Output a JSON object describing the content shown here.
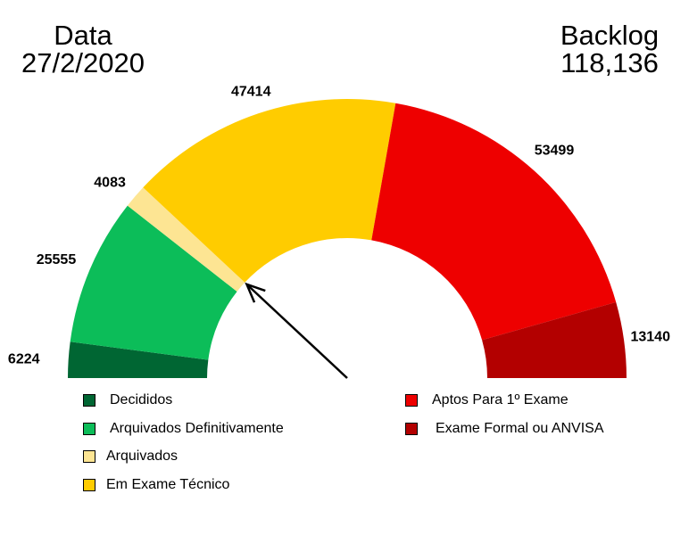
{
  "header": {
    "date_label": "Data",
    "date_value": "27/2/2020",
    "backlog_label": "Backlog",
    "backlog_value": "118,136"
  },
  "chart_data": {
    "type": "pie",
    "variant": "half-donut",
    "categories": [
      "Decididos",
      "Arquivados Definitivamente",
      "Arquivados",
      "Em Exame Técnico",
      "Aptos Para 1º Exame",
      "Exame Formal ou ANVISA"
    ],
    "values": [
      6224,
      25555,
      4083,
      47414,
      53499,
      13140
    ],
    "value_labels": [
      "6224",
      "25555",
      "4083",
      "47414",
      "53499",
      "13140"
    ],
    "colors": [
      "#006633",
      "#0cbd59",
      "#fde593",
      "#ffcc00",
      "#ee0000",
      "#b30000"
    ],
    "legend_placement": "bottom",
    "pointer_value": 35862
  },
  "legend": {
    "left": [
      {
        "label": "Decididos",
        "color": "#006633"
      },
      {
        "label": "Arquivados Definitivamente",
        "color": "#0cbd59"
      },
      {
        "label": "Arquivados",
        "color": "#fde593"
      },
      {
        "label": "Em Exame Técnico",
        "color": "#ffcc00"
      }
    ],
    "right": [
      {
        "label": "Aptos Para 1º Exame",
        "color": "#ee0000"
      },
      {
        "label": "Exame Formal ou ANVISA",
        "color": "#b30000"
      }
    ]
  }
}
